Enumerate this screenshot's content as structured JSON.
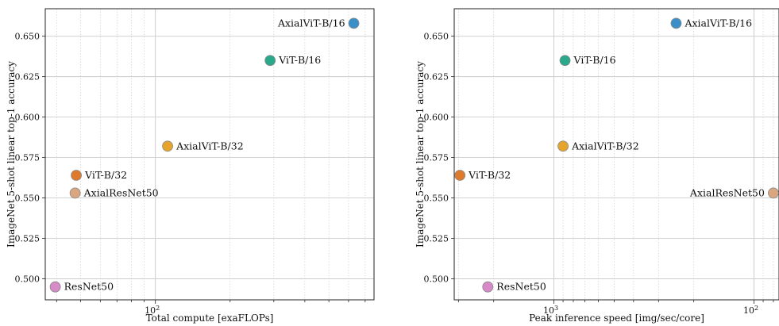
{
  "chart_data": [
    {
      "type": "scatter",
      "xscale": "log",
      "xlabel": "Total compute [exaFLOPs]",
      "ylabel": "ImageNet 5-shot linear top-1 accuracy",
      "xlim": [
        36,
        760
      ],
      "ylim": [
        0.487,
        0.667
      ],
      "grid": true,
      "xticks": [
        {
          "value": 100,
          "label": "10",
          "sup": "2"
        }
      ],
      "yticks": [
        "0.500",
        "0.525",
        "0.550",
        "0.575",
        "0.600",
        "0.625",
        "0.650"
      ],
      "points": [
        {
          "label": "AxialViT-B/16",
          "x": 630,
          "y": 0.658,
          "color": "#3a8fc8",
          "label_side": "left"
        },
        {
          "label": "ViT-B/16",
          "x": 290,
          "y": 0.635,
          "color": "#2aa88a",
          "label_side": "right"
        },
        {
          "label": "AxialViT-B/32",
          "x": 112,
          "y": 0.582,
          "color": "#e6a42d",
          "label_side": "right"
        },
        {
          "label": "ViT-B/32",
          "x": 48,
          "y": 0.564,
          "color": "#dd7a2e",
          "label_side": "right"
        },
        {
          "label": "AxialResNet50",
          "x": 47.5,
          "y": 0.553,
          "color": "#d9a680",
          "label_side": "right"
        },
        {
          "label": "ResNet50",
          "x": 39.5,
          "y": 0.495,
          "color": "#d68bc8",
          "label_side": "right"
        }
      ]
    },
    {
      "type": "scatter",
      "xscale": "log",
      "xreversed": true,
      "xlabel": "Peak inference speed [img/sec/core]",
      "ylabel": "ImageNet 5-shot linear top-1 accuracy",
      "xlim": [
        3150,
        75
      ],
      "ylim": [
        0.487,
        0.667
      ],
      "grid": true,
      "xticks": [
        {
          "value": 1000,
          "label": "10",
          "sup": "3"
        },
        {
          "value": 100,
          "label": "10",
          "sup": "2"
        }
      ],
      "yticks": [
        "0.500",
        "0.525",
        "0.550",
        "0.575",
        "0.600",
        "0.625",
        "0.650"
      ],
      "points": [
        {
          "label": "AxialViT-B/16",
          "x": 245,
          "y": 0.658,
          "color": "#3a8fc8",
          "label_side": "right"
        },
        {
          "label": "ViT-B/16",
          "x": 880,
          "y": 0.635,
          "color": "#2aa88a",
          "label_side": "right"
        },
        {
          "label": "AxialViT-B/32",
          "x": 900,
          "y": 0.582,
          "color": "#e6a42d",
          "label_side": "right"
        },
        {
          "label": "ViT-B/32",
          "x": 2950,
          "y": 0.564,
          "color": "#dd7a2e",
          "label_side": "right"
        },
        {
          "label": "AxialResNet50",
          "x": 80,
          "y": 0.553,
          "color": "#d9a680",
          "label_side": "left"
        },
        {
          "label": "ResNet50",
          "x": 2140,
          "y": 0.495,
          "color": "#d68bc8",
          "label_side": "right"
        }
      ]
    }
  ]
}
